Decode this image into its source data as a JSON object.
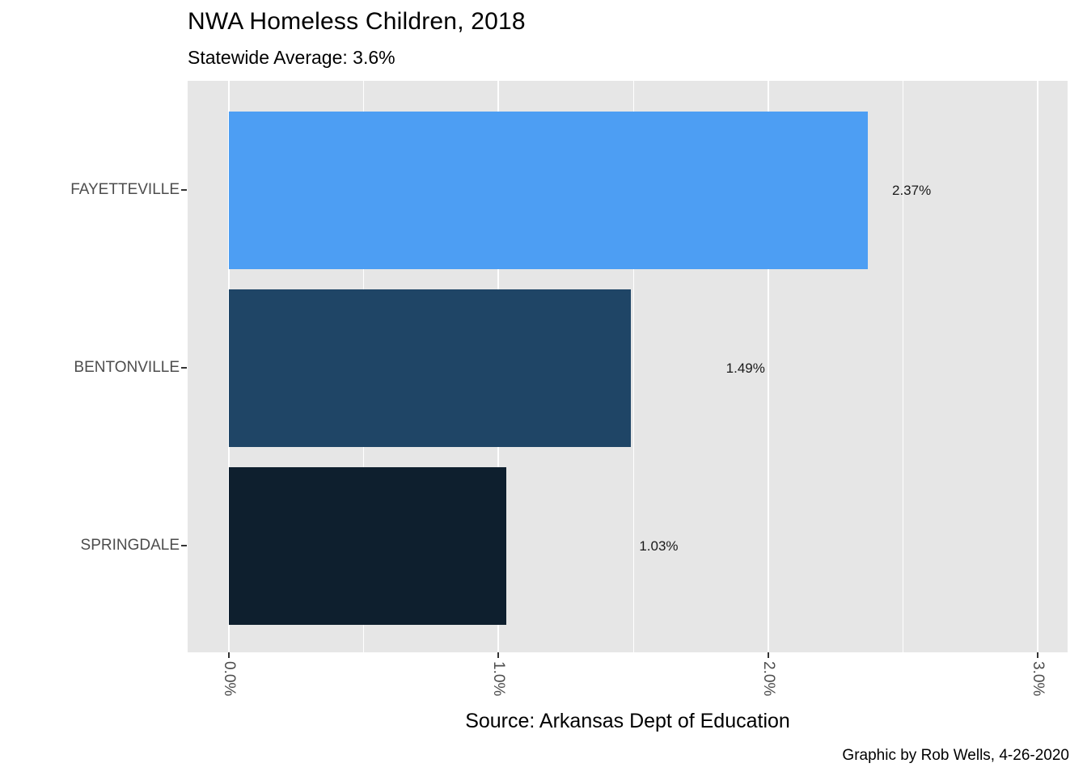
{
  "chart_data": {
    "type": "bar",
    "orientation": "horizontal",
    "title": "NWA Homeless Children, 2018",
    "subtitle": "Statewide Average: 3.6%",
    "xlabel": "Source: Arkansas Dept of Education",
    "ylabel": "",
    "caption": "Graphic by Rob Wells, 4-26-2020",
    "categories": [
      "FAYETTEVILLE",
      "BENTONVILLE",
      "SPRINGDALE"
    ],
    "values": [
      2.37,
      1.49,
      1.03
    ],
    "bar_labels": [
      "2.37%",
      "1.49%",
      "1.03%"
    ],
    "bar_colors": [
      "#4D9EF3",
      "#1F4566",
      "#0E1F2E"
    ],
    "xlim": [
      0,
      3
    ],
    "x_ticks": [
      0,
      1,
      2,
      3
    ],
    "x_tick_labels": [
      "0.0%",
      "1.0%",
      "2.0%",
      "3.0%"
    ],
    "x_minor_ticks": [
      0.5,
      1.5,
      2.5
    ],
    "grid": true,
    "legend": "none",
    "panel_bg": "#E6E6E6",
    "grid_color": "#FFFFFF"
  }
}
